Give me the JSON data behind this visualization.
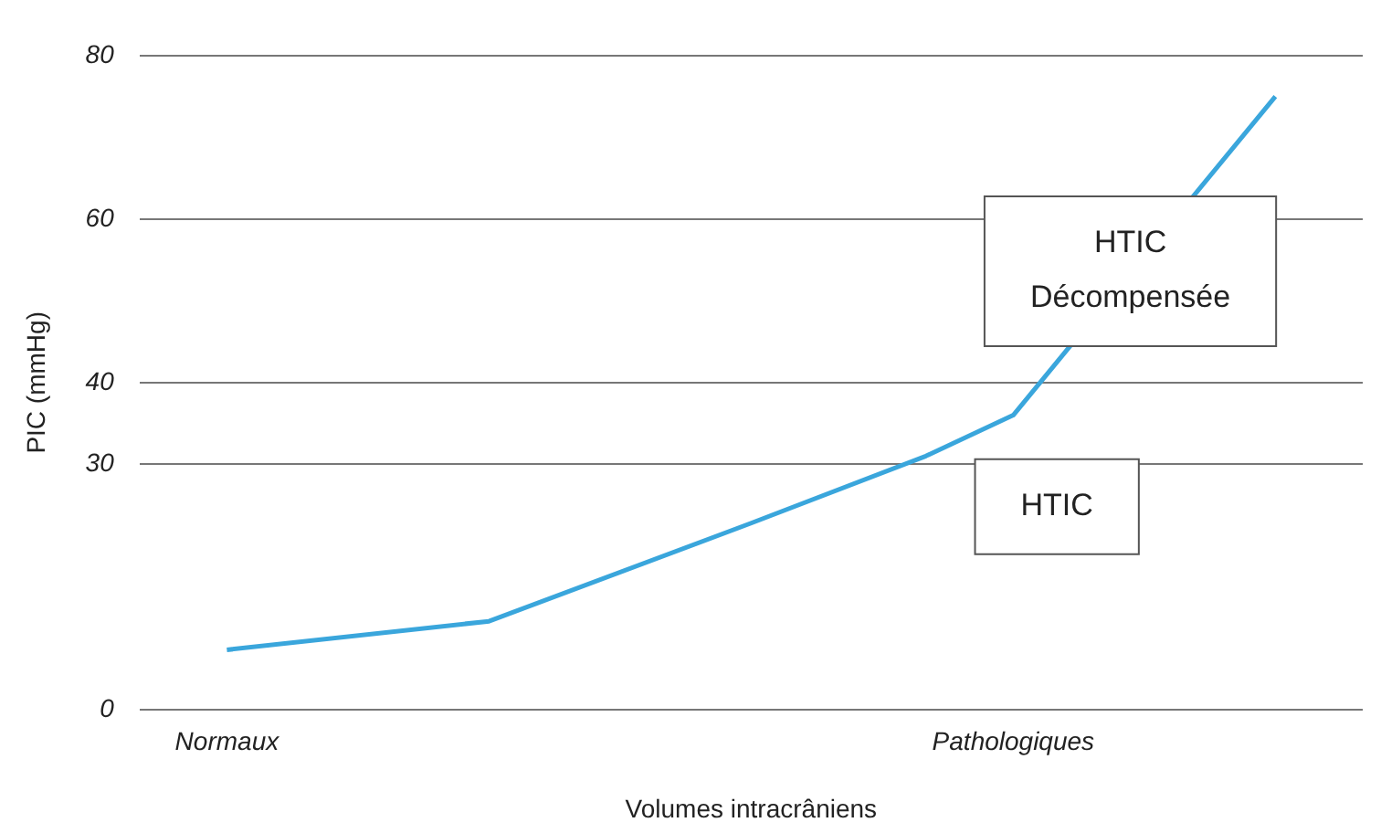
{
  "chart_data": {
    "type": "line",
    "xlabel": "Volumes intracrâniens",
    "ylabel": "PIC (mmHg)",
    "categories": [
      null,
      "Normaux",
      null,
      null,
      null,
      null,
      null,
      null,
      null,
      null,
      "Pathologiques",
      null,
      null,
      null,
      null
    ],
    "series": [
      {
        "color": "#3aa6dc",
        "values": [
          null,
          7.3,
          null,
          null,
          10.8,
          null,
          null,
          22.8,
          null,
          31,
          36,
          null,
          null,
          75,
          null
        ]
      }
    ],
    "ylim": [
      0,
      80
    ],
    "yticks": [
      0,
      30,
      40,
      60,
      80
    ],
    "grid": "y",
    "legend": false,
    "marker": "none",
    "line_style": "solid",
    "annotations": [
      "HTIC",
      "HTIC\nDécompensée"
    ]
  }
}
